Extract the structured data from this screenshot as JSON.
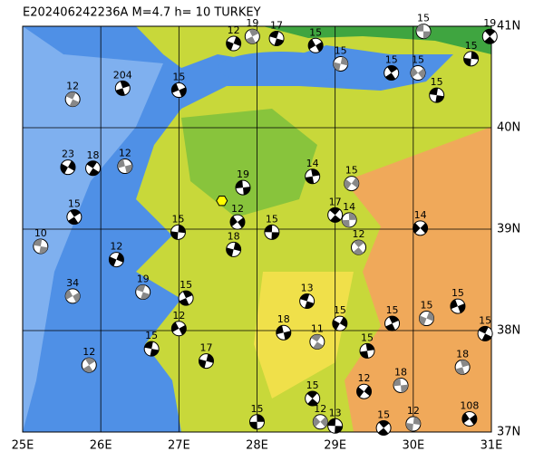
{
  "title": "E202406242236A M=4.7 h= 10 TURKEY",
  "map": {
    "lonlim": [
      25,
      31
    ],
    "latlim": [
      37,
      41
    ],
    "lonticks": [
      {
        "value": 25,
        "label": "25E"
      },
      {
        "value": 26,
        "label": "26E"
      },
      {
        "value": 27,
        "label": "27E"
      },
      {
        "value": 28,
        "label": "28E"
      },
      {
        "value": 29,
        "label": "29E"
      },
      {
        "value": 30,
        "label": "30E"
      },
      {
        "value": 31,
        "label": "31E"
      }
    ],
    "latticks": [
      {
        "value": 37,
        "label": "37N"
      },
      {
        "value": 38,
        "label": "38N"
      },
      {
        "value": 39,
        "label": "39N"
      },
      {
        "value": 40,
        "label": "40N"
      },
      {
        "value": 41,
        "label": "41N"
      }
    ],
    "main_event": {
      "lon": 27.55,
      "lat": 39.28
    },
    "events": [
      {
        "lon": 30.13,
        "lat": 40.95,
        "depth": "15"
      },
      {
        "lon": 30.98,
        "lat": 40.9,
        "depth": "19"
      },
      {
        "lon": 30.74,
        "lat": 40.68,
        "depth": "15"
      },
      {
        "lon": 30.06,
        "lat": 40.54,
        "depth": "15"
      },
      {
        "lon": 30.3,
        "lat": 40.32,
        "depth": "15"
      },
      {
        "lon": 29.72,
        "lat": 40.54,
        "depth": "15"
      },
      {
        "lon": 29.07,
        "lat": 40.63,
        "depth": "15"
      },
      {
        "lon": 28.75,
        "lat": 40.81,
        "depth": "15"
      },
      {
        "lon": 28.25,
        "lat": 40.88,
        "depth": "17"
      },
      {
        "lon": 27.94,
        "lat": 40.9,
        "depth": "19"
      },
      {
        "lon": 27.7,
        "lat": 40.83,
        "depth": "12"
      },
      {
        "lon": 27.0,
        "lat": 40.37,
        "depth": "15"
      },
      {
        "lon": 25.64,
        "lat": 40.28,
        "depth": "12"
      },
      {
        "lon": 26.28,
        "lat": 40.39,
        "depth": "204"
      },
      {
        "lon": 25.58,
        "lat": 39.61,
        "depth": "23"
      },
      {
        "lon": 26.31,
        "lat": 39.62,
        "depth": "12"
      },
      {
        "lon": 25.9,
        "lat": 39.6,
        "depth": "18"
      },
      {
        "lon": 28.71,
        "lat": 39.52,
        "depth": "14"
      },
      {
        "lon": 29.21,
        "lat": 39.45,
        "depth": "15"
      },
      {
        "lon": 27.82,
        "lat": 39.41,
        "depth": "19"
      },
      {
        "lon": 29.0,
        "lat": 39.14,
        "depth": "17"
      },
      {
        "lon": 29.18,
        "lat": 39.09,
        "depth": "14"
      },
      {
        "lon": 30.09,
        "lat": 39.01,
        "depth": "14"
      },
      {
        "lon": 28.19,
        "lat": 38.97,
        "depth": "15"
      },
      {
        "lon": 29.3,
        "lat": 38.82,
        "depth": "12"
      },
      {
        "lon": 26.99,
        "lat": 38.97,
        "depth": "15"
      },
      {
        "lon": 27.75,
        "lat": 39.07,
        "depth": "12"
      },
      {
        "lon": 25.23,
        "lat": 38.83,
        "depth": "10"
      },
      {
        "lon": 25.66,
        "lat": 39.12,
        "depth": "15"
      },
      {
        "lon": 27.7,
        "lat": 38.8,
        "depth": "18"
      },
      {
        "lon": 25.64,
        "lat": 38.34,
        "depth": "34"
      },
      {
        "lon": 28.64,
        "lat": 38.29,
        "depth": "13"
      },
      {
        "lon": 29.73,
        "lat": 38.07,
        "depth": "15"
      },
      {
        "lon": 30.17,
        "lat": 38.12,
        "depth": "15"
      },
      {
        "lon": 30.57,
        "lat": 38.24,
        "depth": "15"
      },
      {
        "lon": 30.92,
        "lat": 37.97,
        "depth": "15"
      },
      {
        "lon": 30.63,
        "lat": 37.64,
        "depth": "18"
      },
      {
        "lon": 29.06,
        "lat": 38.07,
        "depth": "15"
      },
      {
        "lon": 28.34,
        "lat": 37.98,
        "depth": "18"
      },
      {
        "lon": 28.77,
        "lat": 37.89,
        "depth": "11"
      },
      {
        "lon": 29.41,
        "lat": 37.8,
        "depth": "15"
      },
      {
        "lon": 29.37,
        "lat": 37.4,
        "depth": "12"
      },
      {
        "lon": 29.84,
        "lat": 37.46,
        "depth": "18"
      },
      {
        "lon": 28.71,
        "lat": 37.33,
        "depth": "15"
      },
      {
        "lon": 28.0,
        "lat": 37.1,
        "depth": "15"
      },
      {
        "lon": 28.81,
        "lat": 37.1,
        "depth": "12"
      },
      {
        "lon": 29.0,
        "lat": 37.06,
        "depth": "13"
      },
      {
        "lon": 29.62,
        "lat": 37.04,
        "depth": "15"
      },
      {
        "lon": 30.0,
        "lat": 37.08,
        "depth": "12"
      },
      {
        "lon": 30.72,
        "lat": 37.13,
        "depth": "108"
      },
      {
        "lon": 26.65,
        "lat": 37.82,
        "depth": "15"
      },
      {
        "lon": 25.85,
        "lat": 37.66,
        "depth": "12"
      },
      {
        "lon": 27.35,
        "lat": 37.7,
        "depth": "17"
      },
      {
        "lon": 27.0,
        "lat": 38.02,
        "depth": "12"
      },
      {
        "lon": 26.54,
        "lat": 38.38,
        "depth": "19"
      },
      {
        "lon": 27.09,
        "lat": 38.32,
        "depth": "15"
      },
      {
        "lon": 26.2,
        "lat": 38.7,
        "depth": "12"
      }
    ]
  }
}
